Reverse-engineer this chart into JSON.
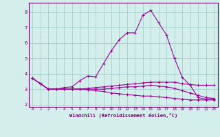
{
  "xlabel": "Windchill (Refroidissement éolien,°C)",
  "bg_color": "#d4eeeb",
  "grid_color": "#aad4d0",
  "line_color": "#990099",
  "axis_color": "#660066",
  "xlim": [
    -0.5,
    23.5
  ],
  "ylim": [
    1.85,
    8.6
  ],
  "xticks": [
    0,
    1,
    2,
    3,
    4,
    5,
    6,
    7,
    8,
    9,
    10,
    11,
    12,
    13,
    14,
    15,
    16,
    17,
    18,
    19,
    20,
    21,
    22,
    23
  ],
  "yticks": [
    2,
    3,
    4,
    5,
    6,
    7,
    8
  ],
  "series": [
    [
      3.7,
      3.35,
      3.0,
      3.0,
      3.1,
      3.15,
      3.55,
      3.85,
      3.8,
      4.65,
      5.5,
      6.2,
      6.65,
      6.65,
      7.8,
      8.1,
      7.3,
      6.5,
      5.0,
      3.75,
      3.25,
      2.45,
      2.35,
      2.35
    ],
    [
      3.7,
      3.35,
      3.0,
      3.0,
      3.0,
      3.0,
      3.0,
      3.05,
      3.1,
      3.15,
      3.2,
      3.25,
      3.3,
      3.35,
      3.4,
      3.45,
      3.45,
      3.45,
      3.45,
      3.35,
      3.3,
      3.25,
      3.25,
      3.25
    ],
    [
      3.7,
      3.35,
      3.0,
      3.0,
      3.0,
      3.0,
      3.0,
      3.0,
      3.0,
      3.0,
      3.05,
      3.1,
      3.15,
      3.15,
      3.2,
      3.25,
      3.2,
      3.15,
      3.05,
      2.9,
      2.75,
      2.6,
      2.45,
      2.4
    ],
    [
      3.7,
      3.35,
      3.0,
      3.0,
      3.0,
      3.0,
      3.0,
      2.95,
      2.9,
      2.85,
      2.75,
      2.7,
      2.65,
      2.6,
      2.55,
      2.55,
      2.5,
      2.45,
      2.4,
      2.35,
      2.3,
      2.3,
      2.3,
      2.3
    ]
  ]
}
